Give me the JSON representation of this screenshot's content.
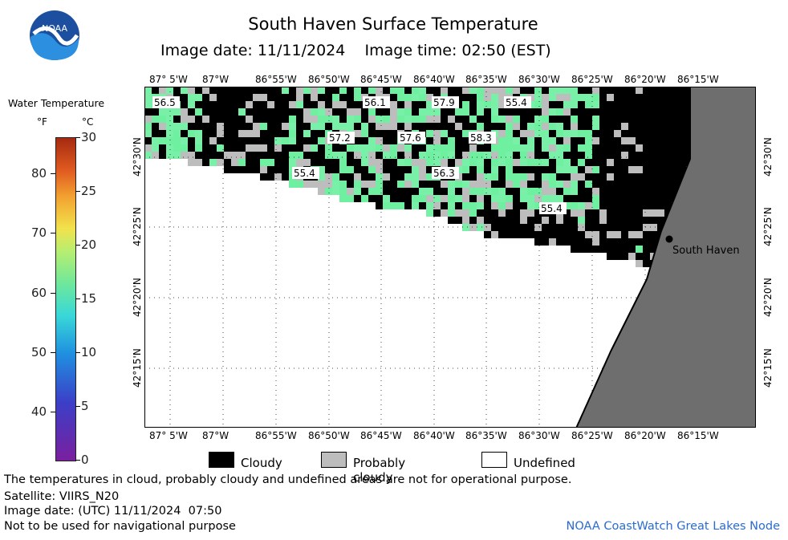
{
  "header": {
    "title": "South Haven Surface Temperature",
    "image_date": "Image date: 11/11/2024",
    "image_time": "Image time: 02:50 (EST)",
    "logo_text": "NOAA"
  },
  "scale": {
    "title": "Water Temperature",
    "unit_f": "°F",
    "unit_c": "°C",
    "f_ticks": [
      "80",
      "70",
      "60",
      "50",
      "40"
    ],
    "c_ticks": [
      "30",
      "25",
      "20",
      "15",
      "10",
      "5",
      "0"
    ]
  },
  "map": {
    "top_lon_labels": [
      "87° 5'W",
      "87°W",
      "86°55'W",
      "86°50'W",
      "86°45'W",
      "86°40'W",
      "86°35'W",
      "86°30'W",
      "86°25'W",
      "86°20'W",
      "86°15'W"
    ],
    "bottom_lon_labels": [
      "87° 5'W",
      "87°W",
      "86°55'W",
      "86°50'W",
      "86°45'W",
      "86°40'W",
      "86°35'W",
      "86°30'W",
      "86°25'W",
      "86°20'W",
      "86°15'W"
    ],
    "lat_labels": [
      "42°30'N",
      "42°25'N",
      "42°20'N",
      "42°15'N"
    ],
    "city": "South Haven",
    "temps": [
      {
        "value": "56.5"
      },
      {
        "value": "56.1"
      },
      {
        "value": "57.9"
      },
      {
        "value": "55.4"
      },
      {
        "value": "57.2"
      },
      {
        "value": "57.6"
      },
      {
        "value": "58.3"
      },
      {
        "value": "55.4"
      },
      {
        "value": "56.3"
      },
      {
        "value": "55.4"
      }
    ]
  },
  "legend": {
    "cloudy": "Cloudy",
    "probably_cloudy": "Probably cloudy",
    "undefined": "Undefined",
    "cloudy_color": "#000000",
    "probably_cloudy_color": "#bdbdbd",
    "undefined_color": "#ffffff"
  },
  "footer": {
    "note": "The temperatures in cloud, probably cloudy and undefined areas are not for operational purpose.",
    "satellite": "Satellite: VIIRS_N20",
    "utc_date": "Image date: (UTC) 11/11/2024  07:50",
    "nav_note": "Not to be used for navigational purpose",
    "credit": "NOAA CoastWatch Great Lakes Node"
  },
  "colors": {
    "land": "#6e6e6e",
    "water_warm": "#6ff0a0",
    "cloud": "#000000",
    "probable": "#bdbdbd"
  }
}
